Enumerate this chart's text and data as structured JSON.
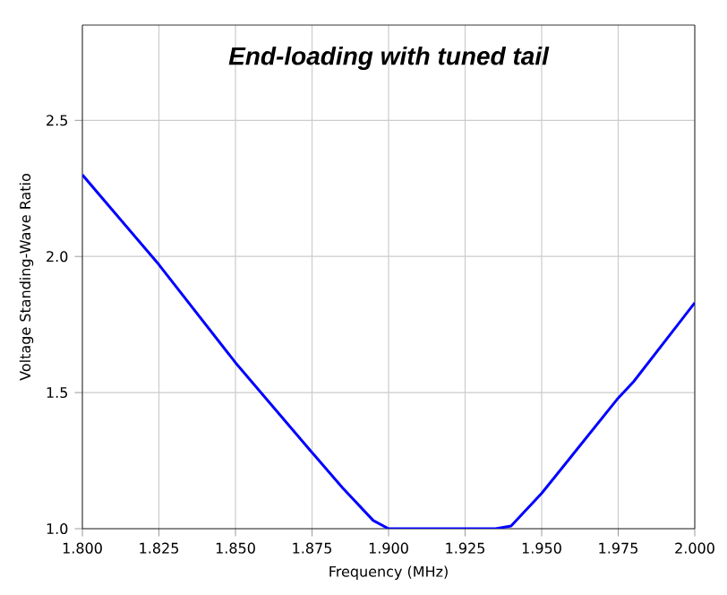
{
  "chart_data": {
    "type": "line",
    "title": "End-loading with tuned tail",
    "xlabel": "Frequency (MHz)",
    "ylabel": "Voltage Standing-Wave Ratio",
    "x": [
      1.8,
      1.825,
      1.85,
      1.875,
      1.885,
      1.895,
      1.9,
      1.935,
      1.94,
      1.95,
      1.96,
      1.975,
      1.98,
      2.0
    ],
    "series": [
      {
        "color": "#0000ff",
        "values": [
          2.3,
          1.97,
          1.61,
          1.28,
          1.15,
          1.03,
          1.0,
          1.0,
          1.01,
          1.13,
          1.27,
          1.48,
          1.54,
          1.83
        ]
      }
    ],
    "xlim": [
      1.8,
      2.0
    ],
    "ylim": [
      1.0,
      2.85
    ],
    "xticks": [
      {
        "value": 1.8,
        "label": "1.800"
      },
      {
        "value": 1.825,
        "label": "1.825"
      },
      {
        "value": 1.85,
        "label": "1.850"
      },
      {
        "value": 1.875,
        "label": "1.875"
      },
      {
        "value": 1.9,
        "label": "1.900"
      },
      {
        "value": 1.925,
        "label": "1.925"
      },
      {
        "value": 1.95,
        "label": "1.950"
      },
      {
        "value": 1.975,
        "label": "1.975"
      },
      {
        "value": 2.0,
        "label": "2.000"
      }
    ],
    "yticks": [
      {
        "value": 1.0,
        "label": "1.0"
      },
      {
        "value": 1.5,
        "label": "1.5"
      },
      {
        "value": 2.0,
        "label": "2.0"
      },
      {
        "value": 2.5,
        "label": "2.5"
      }
    ],
    "grid": true,
    "marker": "none",
    "line_style": "solid"
  }
}
